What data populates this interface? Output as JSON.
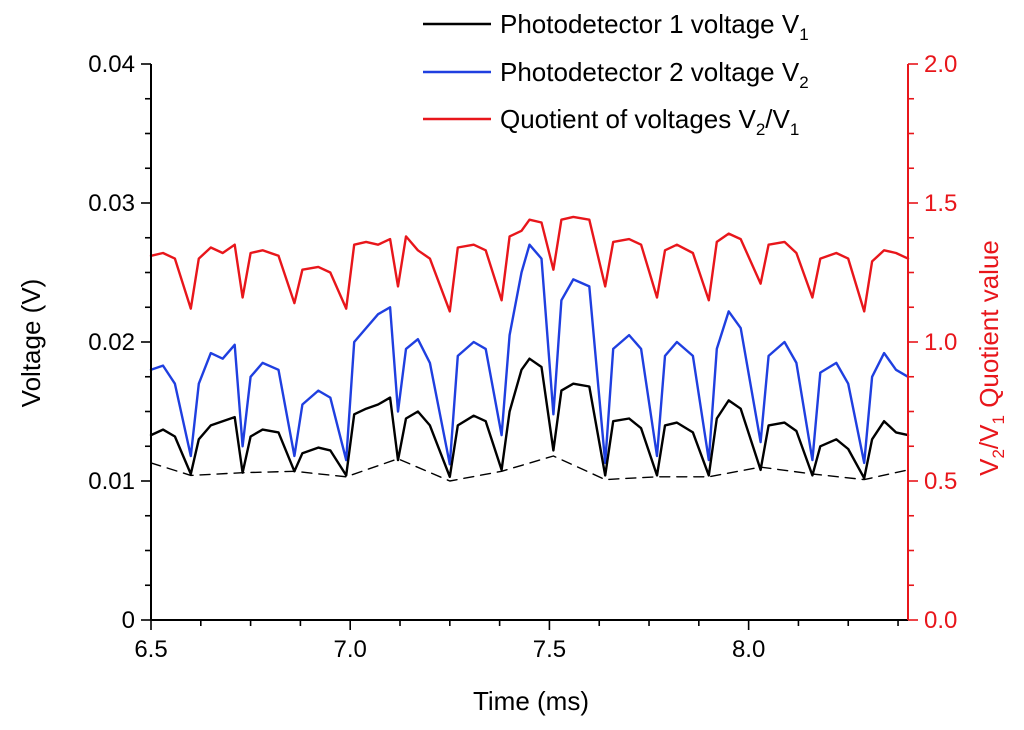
{
  "chart_data": {
    "type": "line",
    "xlabel": "Time (ms)",
    "ylabel": "Voltage (V)",
    "y2label": {
      "v2": "V",
      "sub2": "2",
      "slash": "/V",
      "sub1": "1",
      "rest": " Quotient value"
    },
    "xlim": [
      6.5,
      8.4
    ],
    "ylim": [
      0,
      0.04
    ],
    "y2lim": [
      0.0,
      2.0
    ],
    "x_ticks": [
      6.5,
      7.0,
      7.5,
      8.0
    ],
    "x_tick_labels": [
      "6.5",
      "7.0",
      "7.5",
      "8.0"
    ],
    "y_ticks": [
      0,
      0.01,
      0.02,
      0.03,
      0.04
    ],
    "y_tick_labels": [
      "0",
      "0.01",
      "0.02",
      "0.03",
      "0.04"
    ],
    "y2_ticks": [
      0.0,
      0.5,
      1.0,
      1.5,
      2.0
    ],
    "y2_tick_labels": [
      "0.0",
      "0.5",
      "1.0",
      "1.5",
      "2.0"
    ],
    "colors": {
      "v1": "#000000",
      "v2": "#1f3fe0",
      "quotient": "#e8161b",
      "axis_right": "#e8161b"
    },
    "legend": [
      {
        "key": "v1",
        "text": "Photodetector 1 voltage V",
        "sub": "1",
        "sup": "",
        "color": "#000000"
      },
      {
        "key": "v2",
        "text": "Photodetector 2 voltage V",
        "sub": "2",
        "sup": "",
        "color": "#1f3fe0"
      },
      {
        "key": "quotient",
        "text": "Quotient of voltages V",
        "sub": "2",
        "mid": "/V",
        "sub2": "1",
        "color": "#e8161b"
      }
    ],
    "dips_x": [
      6.6,
      6.73,
      6.86,
      6.99,
      7.12,
      7.25,
      7.38,
      7.51,
      7.64,
      7.77,
      7.9,
      8.03,
      8.16,
      8.29
    ],
    "series": [
      {
        "name": "Photodetector 1 voltage V1",
        "axis": "left",
        "x": [
          6.5,
          6.53,
          6.56,
          6.6,
          6.62,
          6.65,
          6.68,
          6.71,
          6.73,
          6.75,
          6.78,
          6.82,
          6.86,
          6.88,
          6.92,
          6.95,
          6.99,
          7.01,
          7.04,
          7.07,
          7.1,
          7.12,
          7.14,
          7.17,
          7.2,
          7.25,
          7.27,
          7.31,
          7.34,
          7.38,
          7.4,
          7.43,
          7.45,
          7.48,
          7.51,
          7.53,
          7.56,
          7.6,
          7.64,
          7.66,
          7.7,
          7.73,
          7.77,
          7.79,
          7.82,
          7.86,
          7.9,
          7.92,
          7.95,
          7.98,
          8.03,
          8.05,
          8.09,
          8.12,
          8.16,
          8.18,
          8.22,
          8.25,
          8.29,
          8.31,
          8.34,
          8.37,
          8.4
        ],
        "y": [
          0.0133,
          0.0137,
          0.0132,
          0.0105,
          0.013,
          0.014,
          0.0143,
          0.0146,
          0.0106,
          0.0132,
          0.0137,
          0.0135,
          0.0107,
          0.012,
          0.0124,
          0.0122,
          0.0104,
          0.0148,
          0.0152,
          0.0155,
          0.016,
          0.0115,
          0.0145,
          0.015,
          0.014,
          0.0103,
          0.014,
          0.0147,
          0.0143,
          0.0108,
          0.015,
          0.018,
          0.0188,
          0.0182,
          0.0122,
          0.0165,
          0.017,
          0.0168,
          0.0104,
          0.0143,
          0.0145,
          0.0138,
          0.0104,
          0.014,
          0.0142,
          0.0135,
          0.0104,
          0.0145,
          0.0158,
          0.0152,
          0.0108,
          0.014,
          0.0142,
          0.0136,
          0.0104,
          0.0125,
          0.013,
          0.0123,
          0.0102,
          0.013,
          0.0143,
          0.0135,
          0.0133
        ]
      },
      {
        "name": "Photodetector 2 voltage V2",
        "axis": "left",
        "x": [
          6.5,
          6.53,
          6.56,
          6.6,
          6.62,
          6.65,
          6.68,
          6.71,
          6.73,
          6.75,
          6.78,
          6.82,
          6.86,
          6.88,
          6.92,
          6.95,
          6.99,
          7.01,
          7.04,
          7.07,
          7.1,
          7.12,
          7.14,
          7.17,
          7.2,
          7.25,
          7.27,
          7.31,
          7.34,
          7.38,
          7.4,
          7.43,
          7.45,
          7.48,
          7.51,
          7.53,
          7.56,
          7.6,
          7.64,
          7.66,
          7.7,
          7.73,
          7.77,
          7.79,
          7.82,
          7.86,
          7.9,
          7.92,
          7.95,
          7.98,
          8.03,
          8.05,
          8.09,
          8.12,
          8.16,
          8.18,
          8.22,
          8.25,
          8.29,
          8.31,
          8.34,
          8.37,
          8.4
        ],
        "y": [
          0.018,
          0.0183,
          0.017,
          0.0118,
          0.017,
          0.0192,
          0.0188,
          0.0198,
          0.0125,
          0.0175,
          0.0185,
          0.018,
          0.0118,
          0.0155,
          0.0165,
          0.016,
          0.0115,
          0.02,
          0.021,
          0.022,
          0.0225,
          0.015,
          0.0195,
          0.0202,
          0.0185,
          0.0112,
          0.019,
          0.02,
          0.0195,
          0.0133,
          0.0205,
          0.025,
          0.027,
          0.026,
          0.0148,
          0.023,
          0.0245,
          0.024,
          0.0113,
          0.0195,
          0.0205,
          0.0195,
          0.0118,
          0.019,
          0.02,
          0.019,
          0.0115,
          0.0195,
          0.0222,
          0.021,
          0.0128,
          0.019,
          0.02,
          0.0185,
          0.0115,
          0.0178,
          0.0185,
          0.017,
          0.0113,
          0.0175,
          0.0192,
          0.018,
          0.0175
        ]
      },
      {
        "name": "Quotient of voltages V2/V1",
        "axis": "right",
        "x": [
          6.5,
          6.53,
          6.56,
          6.6,
          6.62,
          6.65,
          6.68,
          6.71,
          6.73,
          6.75,
          6.78,
          6.82,
          6.86,
          6.88,
          6.92,
          6.95,
          6.99,
          7.01,
          7.04,
          7.07,
          7.1,
          7.12,
          7.14,
          7.17,
          7.2,
          7.25,
          7.27,
          7.31,
          7.34,
          7.38,
          7.4,
          7.43,
          7.45,
          7.48,
          7.51,
          7.53,
          7.56,
          7.6,
          7.64,
          7.66,
          7.7,
          7.73,
          7.77,
          7.79,
          7.82,
          7.86,
          7.9,
          7.92,
          7.95,
          7.98,
          8.03,
          8.05,
          8.09,
          8.12,
          8.16,
          8.18,
          8.22,
          8.25,
          8.29,
          8.31,
          8.34,
          8.37,
          8.4
        ],
        "y": [
          1.31,
          1.32,
          1.3,
          1.12,
          1.3,
          1.34,
          1.32,
          1.35,
          1.16,
          1.32,
          1.33,
          1.31,
          1.14,
          1.26,
          1.27,
          1.25,
          1.12,
          1.35,
          1.36,
          1.35,
          1.37,
          1.2,
          1.38,
          1.33,
          1.3,
          1.11,
          1.34,
          1.35,
          1.33,
          1.15,
          1.38,
          1.4,
          1.44,
          1.43,
          1.26,
          1.44,
          1.45,
          1.44,
          1.2,
          1.36,
          1.37,
          1.35,
          1.16,
          1.33,
          1.35,
          1.32,
          1.15,
          1.36,
          1.39,
          1.37,
          1.21,
          1.35,
          1.36,
          1.32,
          1.16,
          1.3,
          1.32,
          1.3,
          1.11,
          1.29,
          1.33,
          1.32,
          1.3
        ]
      },
      {
        "name": "Minimum envelope",
        "axis": "left",
        "style": "dashed",
        "x": [
          6.5,
          6.6,
          6.73,
          6.86,
          6.99,
          7.12,
          7.25,
          7.38,
          7.51,
          7.64,
          7.77,
          7.9,
          8.03,
          8.16,
          8.29,
          8.4
        ],
        "y": [
          0.0113,
          0.0104,
          0.0106,
          0.0107,
          0.0103,
          0.0116,
          0.01,
          0.0107,
          0.0118,
          0.0101,
          0.0103,
          0.0103,
          0.011,
          0.0105,
          0.0101,
          0.0108
        ]
      }
    ]
  }
}
